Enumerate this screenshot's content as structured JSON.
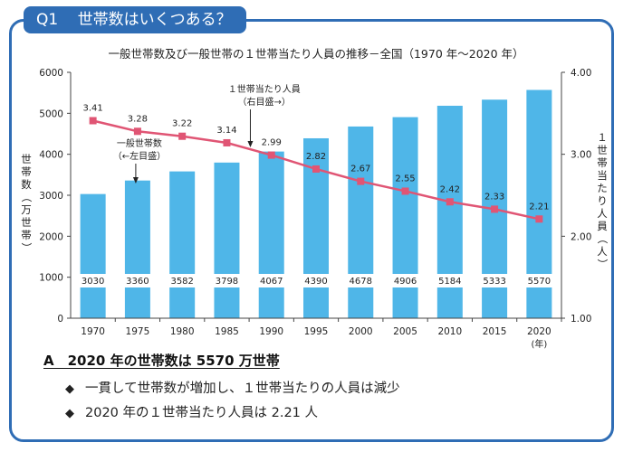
{
  "question": {
    "number": "Q1",
    "text": "世帯数はいくつある？"
  },
  "chart_data": {
    "type": "bar",
    "title": "一般世帯数及び一般世帯の１世帯当たり人員の推移－全国（1970 年～2020 年）",
    "categories": [
      "1970",
      "1975",
      "1980",
      "1985",
      "1990",
      "1995",
      "2000",
      "2005",
      "2010",
      "2015",
      "2020"
    ],
    "x_unit": "(年)",
    "series": [
      {
        "name": "一般世帯数",
        "kind": "bar",
        "axis": "left",
        "values": [
          3030,
          3360,
          3582,
          3798,
          4067,
          4390,
          4678,
          4906,
          5184,
          5333,
          5570
        ],
        "labels": [
          "3030",
          "3360",
          "3582",
          "3798",
          "4067",
          "4390",
          "4678",
          "4906",
          "5184",
          "5333",
          "5570"
        ]
      },
      {
        "name": "１世帯当たり人員",
        "kind": "line",
        "axis": "right",
        "values": [
          3.41,
          3.28,
          3.22,
          3.14,
          2.99,
          2.82,
          2.67,
          2.55,
          2.42,
          2.33,
          2.21
        ],
        "labels": [
          "3.41",
          "3.28",
          "3.22",
          "3.14",
          "2.99",
          "2.82",
          "2.67",
          "2.55",
          "2.42",
          "2.33",
          "2.21"
        ]
      }
    ],
    "ylabel_left": "世帯数（万世帯）",
    "ylabel_right": "１世帯当たり人員（人）",
    "ylim_left": [
      0,
      6000
    ],
    "yticks_left": [
      "0",
      "1000",
      "2000",
      "3000",
      "4000",
      "5000",
      "6000"
    ],
    "ylim_right": [
      1.0,
      4.0
    ],
    "yticks_right": [
      "1.00",
      "2.00",
      "3.00",
      "4.00"
    ],
    "annotations": [
      {
        "text": [
          "一般世帯数",
          "（←左目盛）"
        ]
      },
      {
        "text": [
          "１世帯当たり人員",
          "（右目盛→）"
        ]
      }
    ],
    "colors": {
      "bar": "#4fb6e8",
      "line": "#e05574",
      "axis": "#444444"
    },
    "grid": false
  },
  "answer": {
    "title": "A　2020 年の世帯数は 5570 万世帯",
    "bullets": [
      "一貫して世帯数が増加し、１世帯当たりの人員は減少",
      "2020 年の１世帯当たり人員は 2.21 人"
    ],
    "bullet_mark": "◆"
  },
  "colors": {
    "frame": "#2f6db5",
    "tab_text": "#ffffff"
  }
}
